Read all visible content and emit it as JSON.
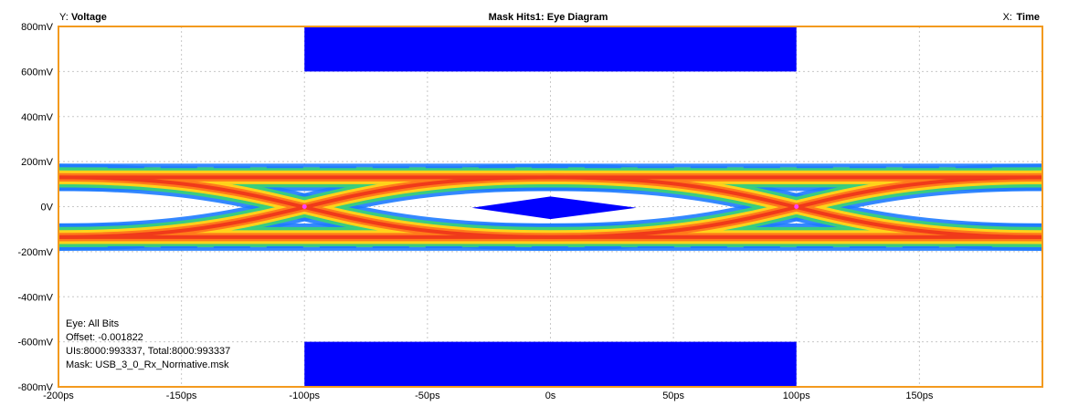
{
  "header": {
    "y_prefix": "Y:",
    "y_name": "Voltage",
    "title": "Mask Hits1: Eye Diagram",
    "x_prefix": "X:",
    "x_name": "Time"
  },
  "info": {
    "eye": "Eye: All Bits",
    "offset": "Offset: -0.001822",
    "uis": "UIs:8000:993337, Total:8000:993337",
    "mask": "Mask: USB_3_0_Rx_Normative.msk"
  },
  "colors": {
    "frame": "#f39a1e",
    "mask": "#0000ff",
    "grid": "#c8c8c8",
    "heat_low": "#1e7bff",
    "heat_mid": "#3ad07a",
    "heat_warm": "#ffd21a",
    "heat_hot": "#ff7a1a",
    "heat_peak": "#f03a1a",
    "crossing": "#ff40ff"
  },
  "chart_data": {
    "type": "heatmap",
    "title": "Mask Hits1: Eye Diagram",
    "xlabel": "Time",
    "ylabel": "Voltage",
    "x_unit": "ps",
    "y_unit": "mV",
    "xlim": [
      -200,
      200
    ],
    "ylim": [
      -800,
      800
    ],
    "x_ticks": [
      -200,
      -150,
      -100,
      -50,
      0,
      50,
      100,
      150
    ],
    "x_tick_labels": [
      "-200ps",
      "-150ps",
      "-100ps",
      "-50ps",
      "0s",
      "50ps",
      "100ps",
      "150ps"
    ],
    "y_ticks": [
      800,
      600,
      400,
      200,
      0,
      -200,
      -400,
      -600,
      -800
    ],
    "y_tick_labels": [
      "800mV",
      "600mV",
      "400mV",
      "200mV",
      "0V",
      "-200mV",
      "-400mV",
      "-600mV",
      "-800mV"
    ],
    "grid": true,
    "eye": {
      "crossings_ps": [
        -100,
        100
      ],
      "high_level_mV": 130,
      "low_level_mV": -135,
      "crossing_level_mV": 0,
      "outer_spread_mV": 45
    },
    "mask_regions": [
      {
        "name": "top",
        "x": [
          -100,
          100
        ],
        "y": [
          600,
          800
        ]
      },
      {
        "name": "center",
        "points": [
          [
            -32,
            -5
          ],
          [
            0,
            45
          ],
          [
            35,
            -5
          ],
          [
            0,
            -55
          ]
        ]
      },
      {
        "name": "bottom",
        "x": [
          -100,
          100
        ],
        "y": [
          -800,
          -600
        ]
      }
    ]
  }
}
